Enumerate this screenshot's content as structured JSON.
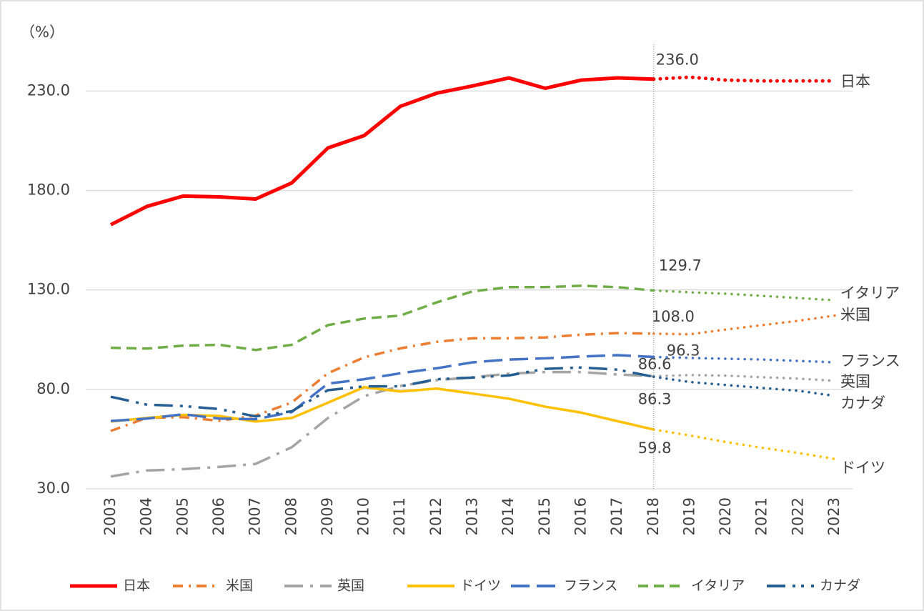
{
  "chart_data": {
    "type": "line",
    "y_label": "（%）",
    "categories": [
      "2003",
      "2004",
      "2005",
      "2006",
      "2007",
      "2008",
      "2009",
      "2010",
      "2011",
      "2012",
      "2013",
      "2014",
      "2015",
      "2016",
      "2017",
      "2018",
      "2019",
      "2020",
      "2021",
      "2022",
      "2023"
    ],
    "forecast_from": "2018",
    "ylim": [
      30,
      265
    ],
    "yticks": [
      {
        "value": 30,
        "label": "30.0"
      },
      {
        "value": 80,
        "label": "80.0"
      },
      {
        "value": 130,
        "label": "130.0"
      },
      {
        "value": 180,
        "label": "180.0"
      },
      {
        "value": 230,
        "label": "230.0"
      }
    ],
    "grid": true,
    "legend": "bottom",
    "series": [
      {
        "name": "日本",
        "color": "#ff0000",
        "style": "solid",
        "values": [
          162.8,
          172,
          177.2,
          176.8,
          175.7,
          183.8,
          201.4,
          207.6,
          222.3,
          228.9,
          232.6,
          236.6,
          231.4,
          235.5,
          236.6,
          236.0,
          237,
          235.5,
          235.1,
          235.1,
          235.1
        ],
        "value_labels": [
          null,
          null,
          null,
          null,
          null,
          null,
          null,
          null,
          null,
          null,
          null,
          null,
          null,
          null,
          null,
          "236.0",
          null,
          null,
          null,
          null,
          null
        ]
      },
      {
        "name": "米国",
        "color": "#ed7d31",
        "style": "dashdot",
        "values": [
          59.1,
          65.7,
          66,
          64.2,
          66.8,
          73.4,
          88.1,
          96.1,
          100.6,
          103.9,
          105.7,
          105.7,
          106.1,
          107.5,
          108.3,
          108.0,
          107.7,
          110.1,
          112.3,
          114.5,
          117.1
        ],
        "value_labels": [
          null,
          null,
          null,
          null,
          null,
          null,
          null,
          null,
          null,
          null,
          null,
          null,
          null,
          null,
          null,
          "108.0",
          null,
          null,
          null,
          null,
          null
        ]
      },
      {
        "name": "英国",
        "color": "#a5a5a5",
        "style": "longdashdot",
        "values": [
          36.2,
          39.2,
          39.9,
          41,
          42.5,
          50.9,
          65.6,
          76.6,
          81.7,
          84.6,
          86.1,
          87.9,
          88.7,
          88.7,
          87.5,
          86.6,
          87.2,
          86.9,
          86.1,
          85.4,
          84.3
        ],
        "value_labels": [
          null,
          null,
          null,
          null,
          null,
          null,
          null,
          null,
          null,
          null,
          null,
          null,
          null,
          null,
          null,
          "86.6",
          null,
          null,
          null,
          null,
          null
        ]
      },
      {
        "name": "ドイツ",
        "color": "#ffc000",
        "style": "solid",
        "values": [
          63.8,
          65.6,
          67.2,
          66.6,
          63.8,
          65.6,
          73.3,
          81.1,
          78.9,
          80.4,
          77.9,
          75.3,
          71.3,
          68.3,
          64,
          59.8,
          56.8,
          53.5,
          50.6,
          48,
          45
        ],
        "value_labels": [
          null,
          null,
          null,
          null,
          null,
          null,
          null,
          null,
          null,
          null,
          null,
          null,
          null,
          null,
          null,
          "59.8",
          null,
          null,
          null,
          null,
          null
        ]
      },
      {
        "name": "フランス",
        "color": "#4472c4",
        "style": "longdash",
        "values": [
          64.1,
          65.3,
          67.5,
          65.3,
          65,
          68.6,
          82.9,
          85.1,
          88.1,
          90.6,
          93.6,
          95,
          95.6,
          96.5,
          97.2,
          96.3,
          95.8,
          95.4,
          95,
          94.3,
          93.6
        ],
        "value_labels": [
          null,
          null,
          null,
          null,
          null,
          null,
          null,
          null,
          null,
          null,
          null,
          null,
          null,
          null,
          null,
          "96.3",
          null,
          null,
          null,
          null,
          null
        ]
      },
      {
        "name": "イタリア",
        "color": "#70ad47",
        "style": "dash",
        "values": [
          100.9,
          100.5,
          102,
          102.4,
          99.8,
          102.4,
          112.3,
          115.6,
          117.1,
          123.7,
          129.3,
          131.4,
          131.4,
          132.1,
          131.4,
          129.7,
          128.8,
          128.1,
          127,
          125.9,
          124.8
        ],
        "value_labels": [
          null,
          null,
          null,
          null,
          null,
          null,
          null,
          null,
          null,
          null,
          null,
          null,
          null,
          null,
          null,
          "129.7",
          null,
          null,
          null,
          null,
          null
        ]
      },
      {
        "name": "カナダ",
        "color": "#255e91",
        "style": "dashdotdot",
        "values": [
          76.3,
          72.3,
          71.6,
          70.1,
          66.4,
          69,
          79.6,
          81.5,
          81.5,
          85.1,
          85.9,
          87,
          90.3,
          91,
          89.9,
          86.3,
          83.7,
          82.2,
          80.7,
          79.3,
          76.7
        ],
        "value_labels": [
          null,
          null,
          null,
          null,
          null,
          null,
          null,
          null,
          null,
          null,
          null,
          null,
          null,
          null,
          null,
          "86.3",
          null,
          null,
          null,
          null,
          null
        ]
      }
    ]
  }
}
